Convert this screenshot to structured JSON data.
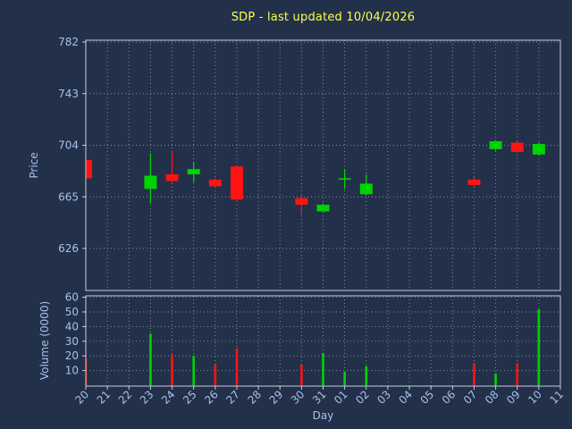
{
  "colors": {
    "background": "#22304a",
    "title": "#ffff4d",
    "tick": "#a9c0e8",
    "grid": "#9aa5b1",
    "spine": "#c3cede",
    "up": "#00d400",
    "down": "#ff1414"
  },
  "chart_data": {
    "type": "candlestick",
    "title": "SDP - last updated 10/04/2026",
    "xlabel": "Day",
    "ylabel_price": "Price",
    "ylabel_volume": "Volume (0000)",
    "x_ticks": [
      "20",
      "21",
      "22",
      "23",
      "24",
      "25",
      "26",
      "27",
      "28",
      "29",
      "30",
      "31",
      "01",
      "02",
      "03",
      "04",
      "05",
      "06",
      "07",
      "08",
      "09",
      "10",
      "11"
    ],
    "price_ticks": [
      626,
      665,
      704,
      743,
      782
    ],
    "price_range": [
      594,
      783
    ],
    "volume_ticks": [
      10,
      20,
      30,
      40,
      50,
      60
    ],
    "volume_range": [
      0,
      62
    ],
    "grid": true,
    "candles": [
      {
        "day": "20",
        "open": 693,
        "high": 693,
        "low": 678,
        "close": 679,
        "volume": 18
      },
      {
        "day": "23",
        "open": 671,
        "high": 698,
        "low": 660,
        "close": 681,
        "volume": 35
      },
      {
        "day": "24",
        "open": 682,
        "high": 699,
        "low": 676,
        "close": 677,
        "volume": 21
      },
      {
        "day": "25",
        "open": 682,
        "high": 691,
        "low": 676,
        "close": 686,
        "volume": 20
      },
      {
        "day": "26",
        "open": 678,
        "high": 679,
        "low": 672,
        "close": 673,
        "volume": 14
      },
      {
        "day": "27",
        "open": 688,
        "high": 689,
        "low": 662,
        "close": 663,
        "volume": 25
      },
      {
        "day": "30",
        "open": 664,
        "high": 666,
        "low": 652,
        "close": 659,
        "volume": 14
      },
      {
        "day": "31",
        "open": 654,
        "high": 660,
        "low": 653,
        "close": 659,
        "volume": 22
      },
      {
        "day": "01",
        "open": 678,
        "high": 686,
        "low": 671,
        "close": 679,
        "volume": 9
      },
      {
        "day": "02",
        "open": 667,
        "high": 682,
        "low": 666,
        "close": 675,
        "volume": 13
      },
      {
        "day": "07",
        "open": 678,
        "high": 680,
        "low": 673,
        "close": 674,
        "volume": 15
      },
      {
        "day": "08",
        "open": 701,
        "high": 708,
        "low": 700,
        "close": 707,
        "volume": 8
      },
      {
        "day": "09",
        "open": 706,
        "high": 707,
        "low": 698,
        "close": 699,
        "volume": 15
      },
      {
        "day": "10",
        "open": 697,
        "high": 706,
        "low": 696,
        "close": 705,
        "volume": 52
      }
    ]
  }
}
